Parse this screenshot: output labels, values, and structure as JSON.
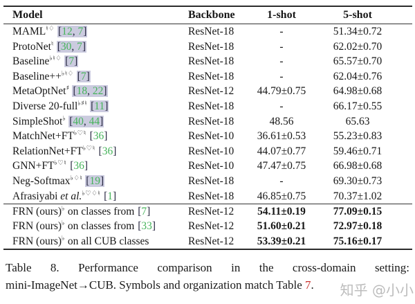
{
  "header": {
    "model": "Model",
    "backbone": "Backbone",
    "one_shot": "1-shot",
    "five_shot": "5-shot"
  },
  "rows_main": [
    {
      "model": "MAML",
      "italic": "",
      "sup": "♮♢",
      "mid": "",
      "cite": "[12, 7]",
      "highlight": true,
      "backbone": "ResNet-18",
      "one_shot": "-",
      "five_shot": "51.34±0.72",
      "bold": false
    },
    {
      "model": "ProtoNet",
      "italic": "",
      "sup": "♮",
      "mid": "",
      "cite": "[30, 7]",
      "highlight": true,
      "backbone": "ResNet-18",
      "one_shot": "-",
      "five_shot": "62.02±0.70",
      "bold": false
    },
    {
      "model": "Baseline",
      "italic": "",
      "sup": "♭♮♢",
      "mid": "",
      "cite": "[7]",
      "highlight": true,
      "backbone": "ResNet-18",
      "one_shot": "-",
      "five_shot": "65.57±0.70",
      "bold": false
    },
    {
      "model": "Baseline++",
      "italic": "",
      "sup": "♭♮♢",
      "mid": "",
      "cite": "[7]",
      "highlight": true,
      "backbone": "ResNet-18",
      "one_shot": "-",
      "five_shot": "62.04±0.76",
      "bold": false
    },
    {
      "model": "MetaOptNet",
      "italic": "",
      "sup": "♯",
      "mid": "",
      "cite": "[18, 22]",
      "highlight": true,
      "backbone": "ResNet-12",
      "one_shot": "44.79±0.75",
      "five_shot": "64.98±0.68",
      "bold": false
    },
    {
      "model": "Diverse 20-full",
      "italic": "",
      "sup": "♭♯♮",
      "mid": "",
      "cite": "[11]",
      "highlight": true,
      "backbone": "ResNet-18",
      "one_shot": "-",
      "five_shot": "66.17±0.55",
      "bold": false
    },
    {
      "model": "SimpleShot",
      "italic": "",
      "sup": "♭",
      "mid": "",
      "cite": "[40, 44]",
      "highlight": true,
      "backbone": "ResNet-18",
      "one_shot": "48.56",
      "five_shot": "65.63",
      "bold": false
    },
    {
      "model": "MatchNet+FT",
      "italic": "",
      "sup": "♭♡♮",
      "mid": "",
      "cite": "[36]",
      "highlight": false,
      "backbone": "ResNet-10",
      "one_shot": "36.61±0.53",
      "five_shot": "55.23±0.83",
      "bold": false
    },
    {
      "model": "RelationNet+FT",
      "italic": "",
      "sup": "♭♡♮",
      "mid": "",
      "cite": "[36]",
      "highlight": false,
      "backbone": "ResNet-10",
      "one_shot": "44.07±0.77",
      "five_shot": "59.46±0.71",
      "bold": false
    },
    {
      "model": "GNN+FT",
      "italic": "",
      "sup": "♭♡♮",
      "mid": "",
      "cite": "[36]",
      "highlight": false,
      "backbone": "ResNet-10",
      "one_shot": "47.47±0.75",
      "five_shot": "66.98±0.68",
      "bold": false
    },
    {
      "model": "Neg-Softmax",
      "italic": "",
      "sup": "♭♢♮",
      "mid": "",
      "cite": "[19]",
      "highlight": true,
      "backbone": "ResNet-18",
      "one_shot": "-",
      "five_shot": "69.30±0.73",
      "bold": false
    },
    {
      "model": "Afrasiyabi ",
      "italic": "et al.",
      "sup": "♭♡♢♮",
      "mid": "",
      "cite": "[1]",
      "highlight": false,
      "backbone": "ResNet-18",
      "one_shot": "46.85±0.75",
      "five_shot": "70.37±1.02",
      "bold": false
    }
  ],
  "rows_frn": [
    {
      "model": "FRN (ours)",
      "italic": "",
      "sup": "♭",
      "mid": " on classes from",
      "cite": "[7]",
      "highlight": false,
      "backbone": "ResNet-12",
      "one_shot": "54.11±0.19",
      "five_shot": "77.09±0.15",
      "bold": true
    },
    {
      "model": "FRN (ours)",
      "italic": "",
      "sup": "♭",
      "mid": " on classes from",
      "cite": "[33]",
      "highlight": false,
      "backbone": "ResNet-12",
      "one_shot": "51.60±0.21",
      "five_shot": "72.97±0.18",
      "bold": true
    },
    {
      "model": "FRN (ours)",
      "italic": "",
      "sup": "♭",
      "mid": " on all CUB classes",
      "cite": "",
      "highlight": false,
      "backbone": "ResNet-12",
      "one_shot": "53.39±0.21",
      "five_shot": "75.16±0.17",
      "bold": true
    }
  ],
  "caption": {
    "line1": "Table 8. Performance comparison in the cross-domain setting:",
    "line2_pre": "mini-ImageNet→CUB. Symbols and organization match Table ",
    "line2_ref": "7",
    "line2_post": "."
  },
  "watermark": {
    "text": "知乎 @小小"
  },
  "colors": {
    "citation_green": "#45b35a",
    "citation_highlight": "#cbcbdf",
    "ref_red": "#c9302c"
  }
}
